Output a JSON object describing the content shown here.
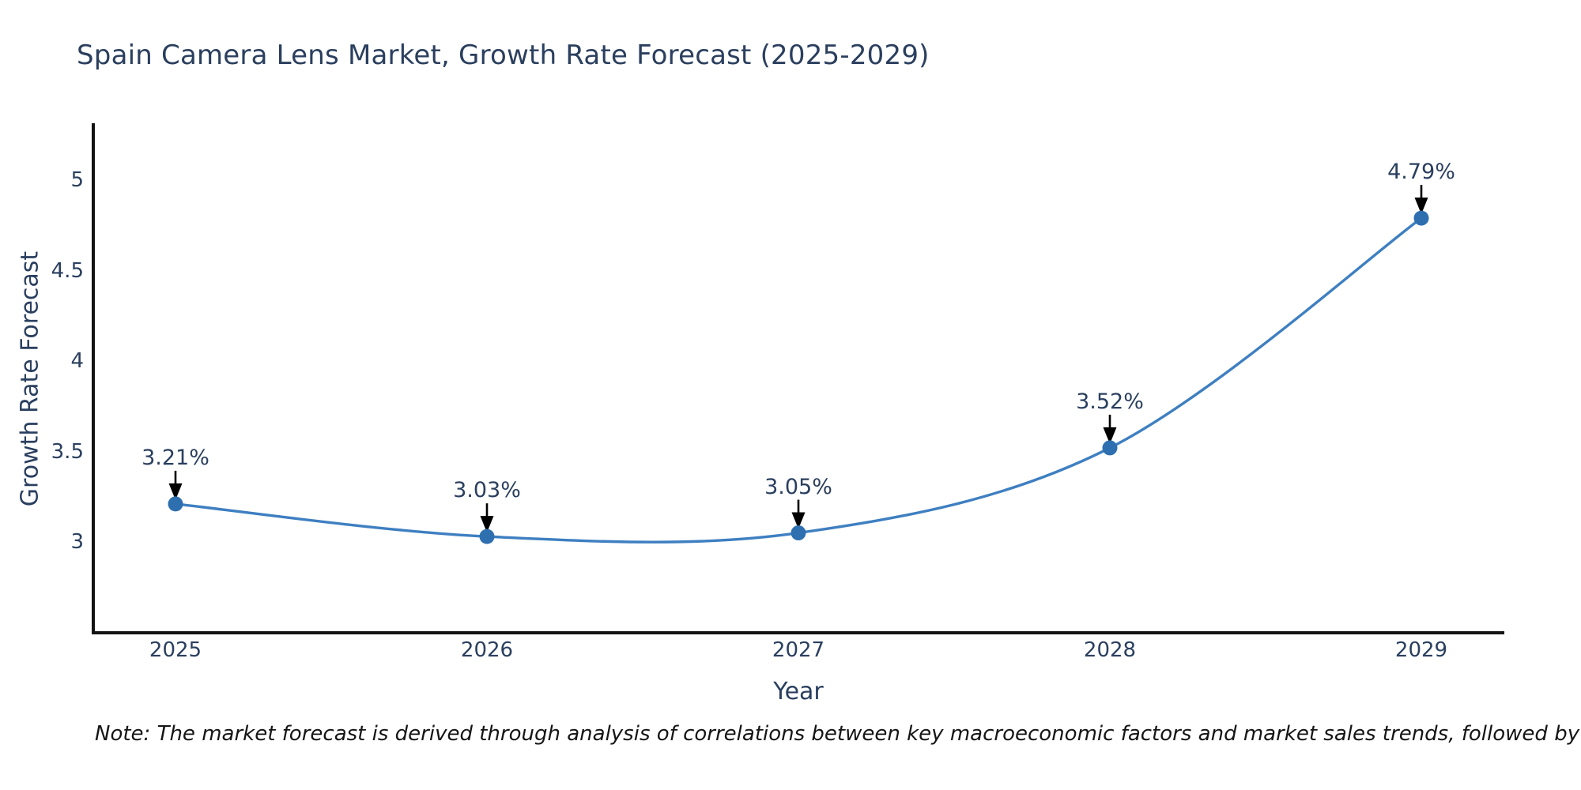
{
  "chart_data": {
    "type": "line",
    "title": "Spain Camera Lens Market, Growth Rate Forecast (2025-2029)",
    "xlabel": "Year",
    "ylabel": "Growth Rate Forecast",
    "x": [
      2025,
      2026,
      2027,
      2028,
      2029
    ],
    "categories": [
      "2025",
      "2026",
      "2027",
      "2028",
      "2029"
    ],
    "series": [
      {
        "name": "Growth Rate Forecast",
        "values": [
          3.21,
          3.03,
          3.05,
          3.52,
          4.79
        ],
        "point_labels": [
          "3.21%",
          "3.03%",
          "3.05%",
          "3.52%",
          "4.79%"
        ]
      }
    ],
    "yticks": [
      3,
      3.5,
      4,
      4.5,
      5
    ],
    "ytick_labels": [
      "3",
      "3.5",
      "4",
      "4.5",
      "5"
    ],
    "ylim": [
      2.5,
      5.31
    ],
    "grid": false,
    "legend": "none",
    "line_shape": "spline",
    "colors": {
      "line": "#3e7fc1",
      "marker": "#2e6fb0",
      "axis_line": "#131313",
      "text": "#2a3f5f",
      "arrow": "#000000",
      "note_text": "#151515",
      "background": "#ffffff"
    },
    "note": "Note: The market forecast is derived through analysis of correlations between key macroeconomic factors and market sales trends, followed by predictive modeling to project future sales"
  }
}
